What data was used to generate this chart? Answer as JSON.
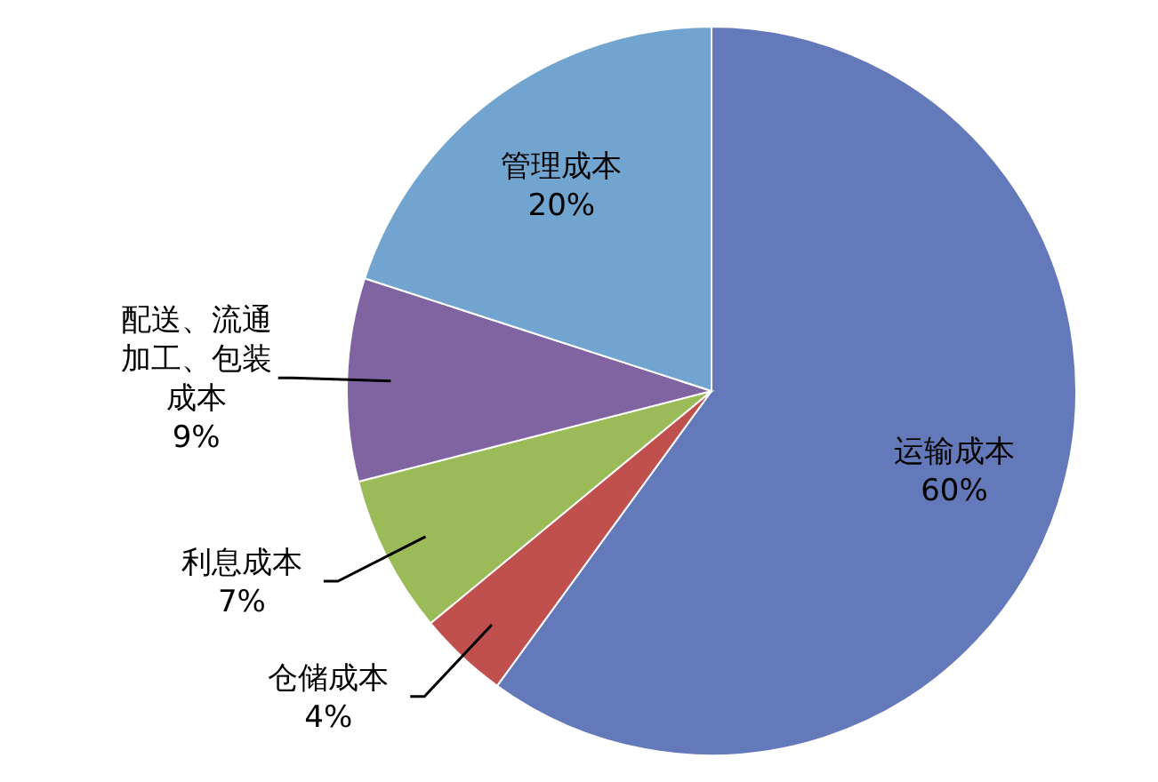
{
  "chart_data": {
    "type": "pie",
    "categories": [
      "运输成本",
      "仓储成本",
      "利息成本",
      "配送、流通加工、包装成本",
      "管理成本"
    ],
    "values": [
      60,
      4,
      7,
      9,
      20
    ],
    "value_labels": [
      "60%",
      "4%",
      "7%",
      "9%",
      "20%"
    ],
    "colors": [
      "#6479b9",
      "#c0504d",
      "#9bbb59",
      "#8064a2",
      "#71a5d0"
    ]
  }
}
